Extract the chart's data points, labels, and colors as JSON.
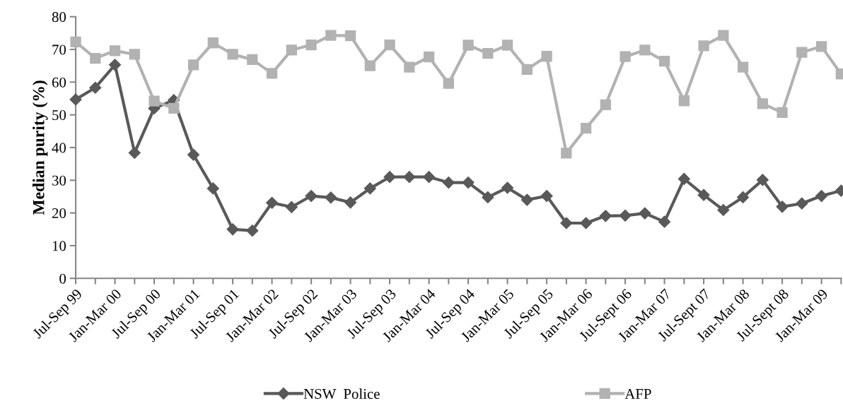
{
  "chart_data": {
    "type": "line",
    "ylabel": "Median purity (%)",
    "categories": [
      "Jul-Sep 99",
      null,
      "Jan-Mar 00",
      null,
      "Jul-Sep 00",
      null,
      "Jan-Mar 01",
      null,
      "Jul-Sep 01",
      null,
      "Jan-Mar 02",
      null,
      "Jul-Sep 02",
      null,
      "Jan-Mar 03",
      null,
      "Jul-Sep 03",
      null,
      "Jan-Mar 04",
      null,
      "Jul-Sep 04",
      null,
      "Jan-Mar 05",
      null,
      "Jul-Sep 05",
      null,
      "Jan-Mar 06",
      null,
      "Jul-Sept 06",
      null,
      "Jan-Mar 07",
      null,
      "Jul-Sept 07",
      null,
      "Jan-Mar 08",
      null,
      "Jul-Sept 08",
      null,
      "Jan-Mar 09",
      null
    ],
    "series": [
      {
        "name": "NSW  Police",
        "color": "#595959",
        "marker": "diamond",
        "values": [
          54.7,
          58.3,
          65.3,
          38.4,
          52.0,
          54.5,
          37.8,
          27.5,
          15.0,
          14.6,
          23.1,
          21.8,
          25.2,
          24.7,
          23.2,
          27.5,
          31.0,
          31.0,
          31.0,
          29.3,
          29.3,
          24.8,
          27.7,
          24.0,
          25.2,
          16.9,
          16.9,
          19.1,
          19.2,
          19.9,
          17.3,
          30.4,
          25.5,
          20.9,
          24.8,
          30.1,
          21.9,
          22.9,
          25.2,
          26.8
        ]
      },
      {
        "name": "AFP",
        "color": "#b2b2b2",
        "marker": "square",
        "values": [
          72.3,
          67.3,
          69.6,
          68.5,
          54.2,
          52.0,
          65.3,
          72.0,
          68.5,
          66.9,
          62.7,
          69.8,
          71.4,
          74.3,
          74.2,
          65.0,
          71.4,
          64.6,
          67.7,
          59.6,
          71.3,
          68.8,
          71.3,
          63.9,
          67.9,
          38.3,
          45.9,
          53.1,
          67.8,
          69.8,
          66.4,
          54.3,
          71.1,
          74.3,
          64.6,
          53.4,
          50.7,
          69.1,
          70.9,
          62.5
        ]
      }
    ],
    "ylim": [
      0,
      80
    ],
    "yticks": [
      0,
      10,
      20,
      30,
      40,
      50,
      60,
      70,
      80
    ],
    "legend": "bottom",
    "line_style": "solid"
  }
}
